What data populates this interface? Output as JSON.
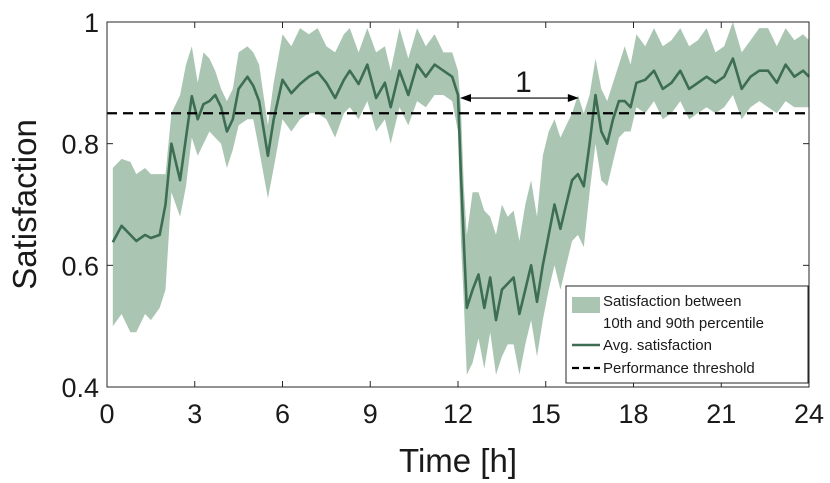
{
  "chart_data": {
    "type": "line",
    "xlabel": "Time [h]",
    "ylabel": "Satisfaction",
    "xlim": [
      0,
      24
    ],
    "ylim": [
      0.4,
      1.0
    ],
    "xticks": [
      0,
      3,
      6,
      9,
      12,
      15,
      18,
      21,
      24
    ],
    "xtick_labels": [
      "0",
      "3",
      "6",
      "9",
      "12",
      "15",
      "18",
      "21",
      "24"
    ],
    "yticks": [
      0.4,
      0.6,
      0.8,
      1.0
    ],
    "ytick_labels": [
      "0.4",
      "0.6",
      "0.8",
      "1"
    ],
    "grid": false,
    "legend_position": "bottom-right",
    "legend": {
      "band_label_line1": "Satisfaction between",
      "band_label_line2": "10th and 90th percentile",
      "avg_label": "Avg. satisfaction",
      "threshold_label": "Performance threshold"
    },
    "colors": {
      "band": "#aac6b3",
      "line": "#3d6e53",
      "threshold": "#000000"
    },
    "threshold": 0.85,
    "annotation": {
      "label": "1",
      "x_start": 12.0,
      "x_end": 16.2,
      "y": 0.875
    },
    "series": [
      {
        "name": "Avg. satisfaction",
        "x": [
          0.2,
          0.5,
          0.8,
          1.0,
          1.3,
          1.5,
          1.8,
          2.0,
          2.2,
          2.5,
          2.7,
          2.9,
          3.1,
          3.3,
          3.5,
          3.7,
          3.9,
          4.1,
          4.3,
          4.5,
          4.8,
          5.0,
          5.2,
          5.5,
          5.7,
          6.0,
          6.3,
          6.6,
          6.9,
          7.2,
          7.5,
          7.8,
          8.1,
          8.3,
          8.6,
          8.9,
          9.2,
          9.5,
          9.7,
          10.0,
          10.3,
          10.6,
          10.9,
          11.2,
          11.5,
          11.8,
          12.0,
          12.1,
          12.2,
          12.3,
          12.5,
          12.7,
          12.9,
          13.1,
          13.3,
          13.5,
          13.7,
          13.9,
          14.1,
          14.3,
          14.5,
          14.7,
          14.9,
          15.1,
          15.3,
          15.5,
          15.7,
          15.9,
          16.1,
          16.3,
          16.5,
          16.7,
          16.9,
          17.1,
          17.3,
          17.5,
          17.7,
          17.9,
          18.1,
          18.4,
          18.7,
          19.0,
          19.3,
          19.6,
          19.9,
          20.2,
          20.5,
          20.8,
          21.1,
          21.4,
          21.7,
          22.0,
          22.3,
          22.6,
          22.9,
          23.2,
          23.5,
          23.8,
          24.0
        ],
        "y": [
          0.638,
          0.665,
          0.65,
          0.64,
          0.65,
          0.645,
          0.65,
          0.7,
          0.8,
          0.74,
          0.81,
          0.878,
          0.84,
          0.865,
          0.87,
          0.88,
          0.86,
          0.82,
          0.84,
          0.89,
          0.91,
          0.895,
          0.87,
          0.78,
          0.84,
          0.905,
          0.883,
          0.898,
          0.91,
          0.918,
          0.9,
          0.875,
          0.905,
          0.92,
          0.898,
          0.93,
          0.875,
          0.9,
          0.86,
          0.92,
          0.88,
          0.93,
          0.91,
          0.93,
          0.92,
          0.91,
          0.88,
          0.75,
          0.64,
          0.53,
          0.56,
          0.585,
          0.53,
          0.58,
          0.51,
          0.56,
          0.57,
          0.58,
          0.52,
          0.56,
          0.6,
          0.54,
          0.6,
          0.65,
          0.7,
          0.66,
          0.7,
          0.74,
          0.75,
          0.73,
          0.8,
          0.88,
          0.82,
          0.8,
          0.84,
          0.87,
          0.87,
          0.86,
          0.9,
          0.905,
          0.92,
          0.89,
          0.9,
          0.92,
          0.89,
          0.9,
          0.91,
          0.9,
          0.91,
          0.94,
          0.89,
          0.91,
          0.92,
          0.92,
          0.9,
          0.93,
          0.91,
          0.92,
          0.91
        ],
        "p90": [
          0.76,
          0.775,
          0.77,
          0.75,
          0.76,
          0.75,
          0.75,
          0.75,
          0.85,
          0.88,
          0.93,
          0.96,
          0.9,
          0.95,
          0.94,
          0.92,
          0.89,
          0.87,
          0.89,
          0.95,
          0.96,
          0.95,
          0.93,
          0.83,
          0.9,
          0.98,
          0.96,
          0.99,
          0.98,
          0.99,
          0.96,
          0.95,
          0.98,
          0.99,
          0.95,
          0.99,
          0.95,
          0.96,
          0.92,
          0.99,
          0.94,
          0.99,
          0.96,
          0.98,
          0.95,
          0.95,
          0.92,
          0.86,
          0.73,
          0.65,
          0.72,
          0.72,
          0.69,
          0.68,
          0.65,
          0.7,
          0.68,
          0.69,
          0.64,
          0.7,
          0.74,
          0.68,
          0.78,
          0.82,
          0.84,
          0.81,
          0.83,
          0.85,
          0.88,
          0.85,
          0.88,
          0.94,
          0.89,
          0.87,
          0.9,
          0.93,
          0.96,
          0.93,
          0.98,
          0.96,
          0.99,
          0.96,
          0.97,
          0.99,
          0.96,
          0.97,
          0.99,
          0.95,
          0.96,
          1.0,
          0.95,
          0.97,
          0.99,
          0.99,
          0.96,
          0.99,
          0.97,
          0.98,
          0.97
        ],
        "p10": [
          0.5,
          0.52,
          0.49,
          0.49,
          0.52,
          0.51,
          0.53,
          0.56,
          0.72,
          0.68,
          0.73,
          0.81,
          0.78,
          0.8,
          0.82,
          0.81,
          0.8,
          0.76,
          0.79,
          0.83,
          0.84,
          0.84,
          0.79,
          0.71,
          0.76,
          0.84,
          0.82,
          0.84,
          0.85,
          0.85,
          0.84,
          0.81,
          0.85,
          0.86,
          0.84,
          0.87,
          0.82,
          0.84,
          0.8,
          0.86,
          0.83,
          0.87,
          0.86,
          0.88,
          0.88,
          0.87,
          0.82,
          0.64,
          0.54,
          0.42,
          0.44,
          0.48,
          0.43,
          0.49,
          0.42,
          0.45,
          0.47,
          0.47,
          0.42,
          0.47,
          0.51,
          0.45,
          0.51,
          0.56,
          0.6,
          0.56,
          0.6,
          0.64,
          0.65,
          0.63,
          0.72,
          0.8,
          0.74,
          0.73,
          0.77,
          0.81,
          0.82,
          0.82,
          0.86,
          0.85,
          0.87,
          0.84,
          0.85,
          0.87,
          0.84,
          0.85,
          0.86,
          0.85,
          0.86,
          0.88,
          0.84,
          0.86,
          0.87,
          0.86,
          0.85,
          0.87,
          0.86,
          0.86,
          0.86
        ]
      }
    ]
  }
}
